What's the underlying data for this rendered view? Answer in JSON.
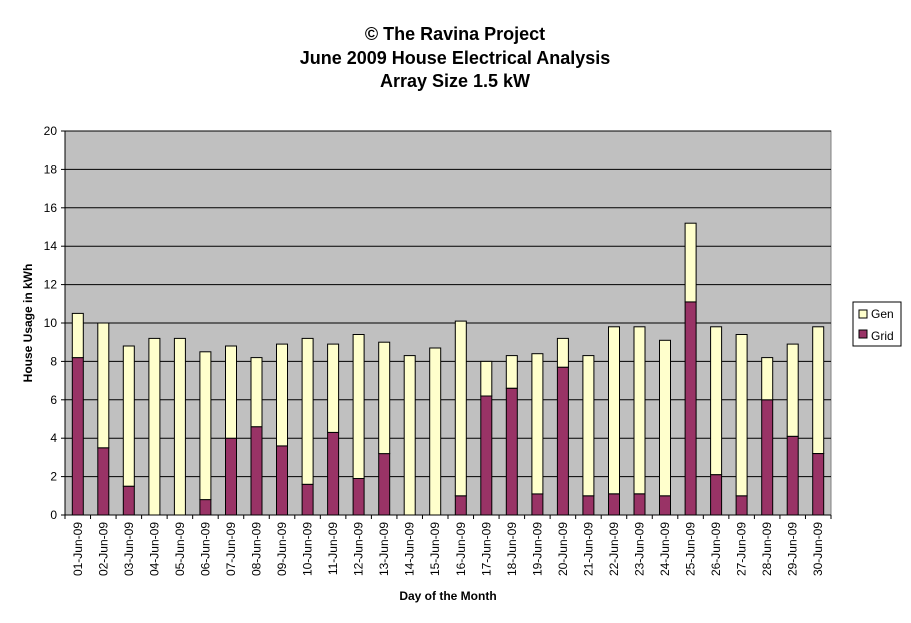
{
  "chart_data": {
    "type": "bar",
    "stacked": true,
    "title_lines": [
      "© The Ravina Project",
      "June 2009 House Electrical Analysis",
      "Array Size 1.5 kW"
    ],
    "xlabel": "Day of the Month",
    "ylabel": "House Usage in kWh",
    "ylim": [
      0,
      20
    ],
    "yticks": [
      0,
      2,
      4,
      6,
      8,
      10,
      12,
      14,
      16,
      18,
      20
    ],
    "grid": true,
    "legend_position": "right",
    "categories": [
      "01-Jun-09",
      "02-Jun-09",
      "03-Jun-09",
      "04-Jun-09",
      "05-Jun-09",
      "06-Jun-09",
      "07-Jun-09",
      "08-Jun-09",
      "09-Jun-09",
      "10-Jun-09",
      "11-Jun-09",
      "12-Jun-09",
      "13-Jun-09",
      "14-Jun-09",
      "15-Jun-09",
      "16-Jun-09",
      "17-Jun-09",
      "18-Jun-09",
      "19-Jun-09",
      "20-Jun-09",
      "21-Jun-09",
      "22-Jun-09",
      "23-Jun-09",
      "24-Jun-09",
      "25-Jun-09",
      "26-Jun-09",
      "27-Jun-09",
      "28-Jun-09",
      "29-Jun-09",
      "30-Jun-09"
    ],
    "series": [
      {
        "name": "Grid",
        "color": "#993366",
        "values": [
          8.2,
          3.5,
          1.5,
          0.0,
          0.0,
          0.8,
          4.0,
          4.6,
          3.6,
          1.6,
          4.3,
          1.9,
          3.2,
          0.0,
          0.0,
          1.0,
          6.2,
          6.6,
          1.1,
          7.7,
          1.0,
          1.1,
          1.1,
          1.0,
          11.1,
          2.1,
          1.0,
          6.0,
          4.1,
          3.2
        ]
      },
      {
        "name": "Gen",
        "color": "#FFFFCC",
        "values": [
          2.3,
          6.5,
          7.3,
          9.2,
          9.2,
          7.7,
          4.8,
          3.6,
          5.3,
          7.6,
          4.6,
          7.5,
          5.8,
          8.3,
          8.7,
          9.1,
          1.8,
          1.7,
          7.3,
          1.5,
          7.3,
          8.7,
          8.7,
          8.1,
          4.1,
          7.7,
          8.4,
          2.2,
          4.8,
          6.6
        ]
      }
    ],
    "colors": {
      "plot_background": "#C0C0C0",
      "gridline": "#000000",
      "bar_outline": "#000000"
    }
  }
}
